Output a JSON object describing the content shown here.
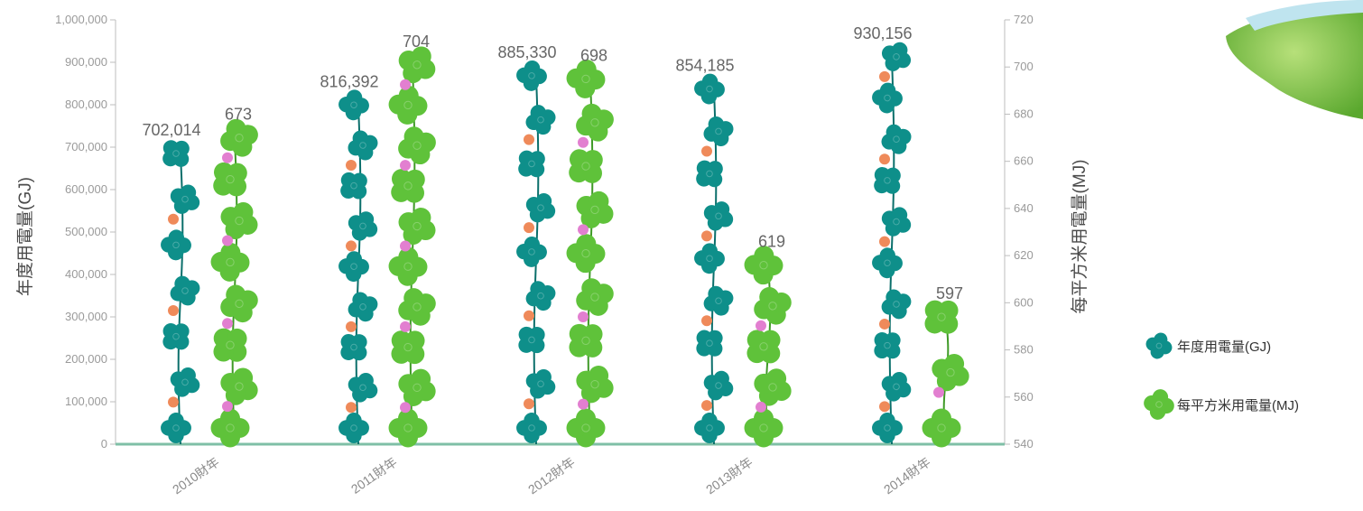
{
  "chart_data": {
    "type": "bar",
    "categories": [
      "2010財年",
      "2011財年",
      "2012財年",
      "2013財年",
      "2014財年"
    ],
    "series": [
      {
        "name": "年度用電量(GJ)",
        "axis": "left",
        "color": "#0e8f8a",
        "values": [
          702014,
          816392,
          885330,
          854185,
          930156
        ],
        "labels": [
          "702,014",
          "816,392",
          "885,330",
          "854,185",
          "930,156"
        ]
      },
      {
        "name": "每平方米用電量(MJ)",
        "axis": "right",
        "color": "#5fc23a",
        "values": [
          673,
          704,
          698,
          619,
          597
        ],
        "labels": [
          "673",
          "704",
          "698",
          "619",
          "597"
        ]
      }
    ],
    "ylabel": "年度用電量(GJ)",
    "y2label": "每平方米用電量(MJ)",
    "ylim": [
      0,
      1000000
    ],
    "y2lim": [
      540,
      720
    ],
    "yticks": [
      "0",
      "100,000",
      "200,000",
      "300,000",
      "400,000",
      "500,000",
      "600,000",
      "700,000",
      "800,000",
      "900,000",
      "1,000,000"
    ],
    "y2ticks": [
      "540",
      "560",
      "580",
      "600",
      "620",
      "640",
      "660",
      "680",
      "700",
      "720"
    ],
    "legend_position": "right",
    "grid": false
  }
}
